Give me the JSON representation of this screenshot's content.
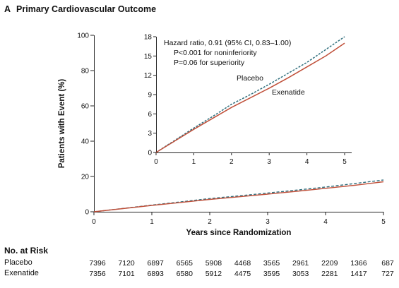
{
  "panel": {
    "letter": "A",
    "title": "Primary Cardiovascular Outcome"
  },
  "chart_data": [
    {
      "type": "line",
      "xlabel": "Years since Randomization",
      "ylabel": "Patients with Event (%)",
      "xlim": [
        0,
        5
      ],
      "ylim": [
        0,
        100
      ],
      "xticks": [
        "0",
        "1",
        "2",
        "3",
        "4",
        "5"
      ],
      "yticks": [
        "0",
        "20",
        "40",
        "60",
        "80",
        "100"
      ],
      "series": [
        {
          "name": "Placebo",
          "style": "dashed",
          "color": "#2f6e7c",
          "x": [
            0,
            0.5,
            1,
            1.5,
            2,
            2.5,
            3,
            3.5,
            4,
            4.5,
            5
          ],
          "y": [
            0,
            1.9,
            3.8,
            5.6,
            7.5,
            9.0,
            10.6,
            12.3,
            14.0,
            16.0,
            18.0
          ]
        },
        {
          "name": "Exenatide",
          "style": "solid",
          "color": "#c0503a",
          "x": [
            0,
            0.5,
            1,
            1.5,
            2,
            2.5,
            3,
            3.5,
            4,
            4.5,
            5
          ],
          "y": [
            0,
            1.8,
            3.6,
            5.3,
            7.0,
            8.5,
            10.0,
            11.6,
            13.3,
            15.0,
            17.0
          ]
        }
      ]
    },
    {
      "type": "line",
      "inset": true,
      "xlim": [
        0,
        5
      ],
      "ylim": [
        0,
        18
      ],
      "xticks": [
        "0",
        "1",
        "2",
        "3",
        "4",
        "5"
      ],
      "yticks": [
        "0",
        "3",
        "6",
        "9",
        "12",
        "15",
        "18"
      ],
      "annotations": [
        "Hazard ratio, 0.91 (95% CI, 0.83–1.00)",
        "P<0.001 for noninferiority",
        "P=0.06 for superiority"
      ],
      "series_labels": [
        "Placebo",
        "Exenatide"
      ],
      "series": [
        {
          "name": "Placebo",
          "style": "dashed",
          "color": "#2f6e7c",
          "x": [
            0,
            0.5,
            1,
            1.5,
            2,
            2.5,
            3,
            3.5,
            4,
            4.5,
            5
          ],
          "y": [
            0,
            1.9,
            3.8,
            5.6,
            7.5,
            9.0,
            10.6,
            12.3,
            14.0,
            16.0,
            18.0
          ]
        },
        {
          "name": "Exenatide",
          "style": "solid",
          "color": "#c0503a",
          "x": [
            0,
            0.5,
            1,
            1.5,
            2,
            2.5,
            3,
            3.5,
            4,
            4.5,
            5
          ],
          "y": [
            0,
            1.8,
            3.6,
            5.3,
            7.0,
            8.5,
            10.0,
            11.6,
            13.3,
            15.0,
            17.0
          ]
        }
      ]
    }
  ],
  "risk_table": {
    "title": "No. at Risk",
    "rows": [
      {
        "label": "Placebo",
        "values": [
          "7396",
          "7120",
          "6897",
          "6565",
          "5908",
          "4468",
          "3565",
          "2961",
          "2209",
          "1366",
          "687"
        ]
      },
      {
        "label": "Exenatide",
        "values": [
          "7356",
          "7101",
          "6893",
          "6580",
          "5912",
          "4475",
          "3595",
          "3053",
          "2281",
          "1417",
          "727"
        ]
      }
    ]
  }
}
